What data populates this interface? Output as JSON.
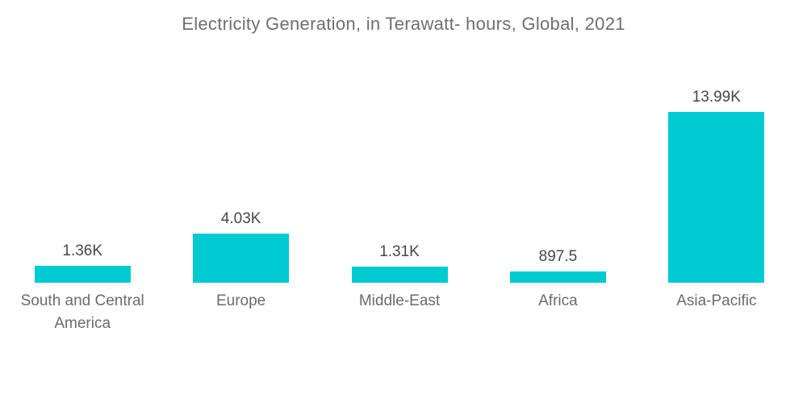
{
  "chart_data": {
    "type": "bar",
    "title": "Electricity Generation, in Terawatt- hours, Global, 2021",
    "categories": [
      "South and Central America",
      "Europe",
      "Middle-East",
      "Africa",
      "Asia-Pacific"
    ],
    "values": [
      1360,
      4030,
      1310,
      897.5,
      13990
    ],
    "value_labels": [
      "1.36K",
      "4.03K",
      "1.31K",
      "897.5",
      "13.99K"
    ],
    "ylabel": "",
    "xlabel": "",
    "ylim": [
      0,
      13990
    ],
    "grid": false,
    "axes_visible": false,
    "legend_position": "none",
    "colors": {
      "bar": "#00CBD2",
      "title_text": "#6f6f6f",
      "value_label_text": "#474747",
      "category_label_text": "#6b6b6b",
      "background": "#ffffff"
    }
  }
}
